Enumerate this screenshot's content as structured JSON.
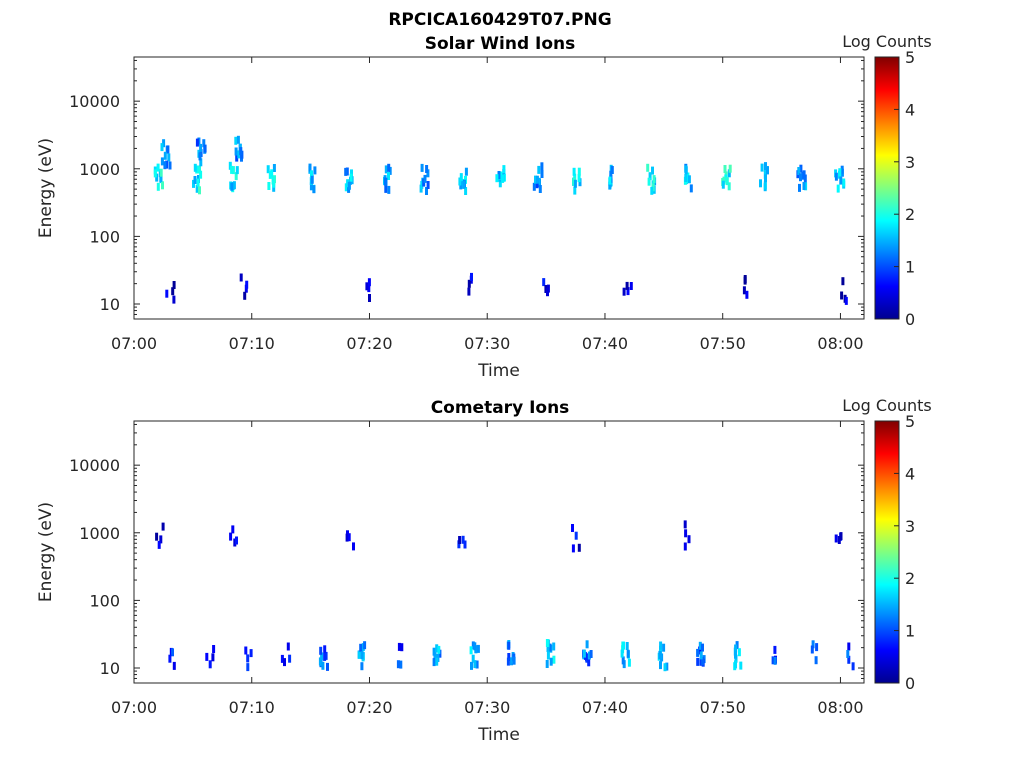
{
  "figure_title": "RPCICA160429T07.PNG",
  "colormap": [
    "#00008f",
    "#0000ff",
    "#0080ff",
    "#00ffff",
    "#80ff80",
    "#ffff00",
    "#ff8000",
    "#ff0000",
    "#800000"
  ],
  "chart_data": [
    {
      "type": "heatmap",
      "title": "Solar Wind Ions",
      "xlabel": "Time",
      "ylabel": "Energy (eV)",
      "x_ticks": [
        "07:00",
        "07:10",
        "07:20",
        "07:30",
        "07:40",
        "07:50",
        "08:00"
      ],
      "x_range_min": [
        0,
        62
      ],
      "y_ticks": [
        "10",
        "100",
        "1000",
        "10000"
      ],
      "y_scale": "log",
      "y_range": [
        6,
        45000
      ],
      "colorbar": {
        "label": "Log Counts",
        "ticks": [
          "0",
          "1",
          "2",
          "3",
          "4",
          "5"
        ],
        "range": [
          0,
          5
        ]
      },
      "scan_period_min": 3.2,
      "sample_cells": [
        {
          "t": 2.0,
          "E": 700,
          "logc": 1.8
        },
        {
          "t": 2.6,
          "E": 1600,
          "logc": 1.3
        },
        {
          "t": 5.2,
          "E": 700,
          "logc": 1.8
        },
        {
          "t": 5.6,
          "E": 1800,
          "logc": 1.2
        },
        {
          "t": 8.4,
          "E": 750,
          "logc": 1.7
        },
        {
          "t": 8.8,
          "E": 1800,
          "logc": 1.3
        },
        {
          "t": 11.6,
          "E": 700,
          "logc": 1.7
        },
        {
          "t": 15.0,
          "E": 700,
          "logc": 1.6
        },
        {
          "t": 18.2,
          "E": 700,
          "logc": 1.5
        },
        {
          "t": 21.4,
          "E": 700,
          "logc": 1.4
        },
        {
          "t": 24.6,
          "E": 700,
          "logc": 1.3
        },
        {
          "t": 27.8,
          "E": 700,
          "logc": 1.6
        },
        {
          "t": 31.0,
          "E": 750,
          "logc": 1.5
        },
        {
          "t": 34.2,
          "E": 750,
          "logc": 1.3
        },
        {
          "t": 37.4,
          "E": 700,
          "logc": 1.7
        },
        {
          "t": 40.6,
          "E": 750,
          "logc": 1.5
        },
        {
          "t": 43.8,
          "E": 700,
          "logc": 1.8
        },
        {
          "t": 47.0,
          "E": 700,
          "logc": 1.6
        },
        {
          "t": 50.2,
          "E": 750,
          "logc": 1.9
        },
        {
          "t": 53.4,
          "E": 750,
          "logc": 1.5
        },
        {
          "t": 56.6,
          "E": 700,
          "logc": 1.4
        },
        {
          "t": 59.8,
          "E": 700,
          "logc": 1.6
        },
        {
          "t": 3.0,
          "E": 15,
          "logc": 0.3
        },
        {
          "t": 9.3,
          "E": 17,
          "logc": 0.3
        },
        {
          "t": 19.6,
          "E": 16,
          "logc": 0.4
        },
        {
          "t": 28.3,
          "E": 17,
          "logc": 0.4
        },
        {
          "t": 35.0,
          "E": 17,
          "logc": 0.5
        },
        {
          "t": 41.8,
          "E": 16,
          "logc": 0.4
        },
        {
          "t": 52.0,
          "E": 16,
          "logc": 0.3
        },
        {
          "t": 60.2,
          "E": 16,
          "logc": 0.3
        }
      ]
    },
    {
      "type": "heatmap",
      "title": "Cometary Ions",
      "xlabel": "Time",
      "ylabel": "Energy (eV)",
      "x_ticks": [
        "07:00",
        "07:10",
        "07:20",
        "07:30",
        "07:40",
        "07:50",
        "08:00"
      ],
      "x_range_min": [
        0,
        62
      ],
      "y_ticks": [
        "10",
        "100",
        "1000",
        "10000"
      ],
      "y_scale": "log",
      "y_range": [
        6,
        45000
      ],
      "colorbar": {
        "label": "Log Counts",
        "ticks": [
          "0",
          "1",
          "2",
          "3",
          "4",
          "5"
        ],
        "range": [
          0,
          5
        ]
      },
      "scan_period_min": 3.2,
      "sample_cells": [
        {
          "t": 3.2,
          "E": 15,
          "logc": 0.8
        },
        {
          "t": 6.4,
          "E": 14,
          "logc": 0.6
        },
        {
          "t": 9.6,
          "E": 14,
          "logc": 1.0
        },
        {
          "t": 12.8,
          "E": 15,
          "logc": 0.7
        },
        {
          "t": 16.0,
          "E": 15,
          "logc": 1.1
        },
        {
          "t": 19.2,
          "E": 15,
          "logc": 1.4
        },
        {
          "t": 22.4,
          "E": 14,
          "logc": 0.9
        },
        {
          "t": 25.6,
          "E": 16,
          "logc": 1.4
        },
        {
          "t": 28.8,
          "E": 15,
          "logc": 1.5
        },
        {
          "t": 32.0,
          "E": 16,
          "logc": 1.2
        },
        {
          "t": 35.2,
          "E": 16,
          "logc": 1.6
        },
        {
          "t": 38.4,
          "E": 15,
          "logc": 1.2
        },
        {
          "t": 41.6,
          "E": 15,
          "logc": 1.6
        },
        {
          "t": 44.8,
          "E": 15,
          "logc": 1.5
        },
        {
          "t": 48.0,
          "E": 15,
          "logc": 1.1
        },
        {
          "t": 51.2,
          "E": 15,
          "logc": 1.6
        },
        {
          "t": 54.4,
          "E": 14,
          "logc": 0.9
        },
        {
          "t": 57.6,
          "E": 15,
          "logc": 1.0
        },
        {
          "t": 60.8,
          "E": 14,
          "logc": 0.9
        },
        {
          "t": 2.0,
          "E": 850,
          "logc": 0.4
        },
        {
          "t": 8.4,
          "E": 850,
          "logc": 0.5
        },
        {
          "t": 18.2,
          "E": 850,
          "logc": 0.6
        },
        {
          "t": 27.8,
          "E": 900,
          "logc": 0.6
        },
        {
          "t": 37.4,
          "E": 850,
          "logc": 0.5
        },
        {
          "t": 47.0,
          "E": 900,
          "logc": 0.5
        },
        {
          "t": 59.8,
          "E": 850,
          "logc": 0.4
        }
      ]
    }
  ]
}
